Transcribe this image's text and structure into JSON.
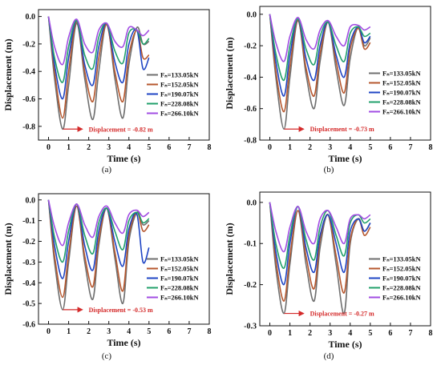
{
  "colors": {
    "series": [
      "#6f6f6f",
      "#b6572e",
      "#1f45c4",
      "#22a06b",
      "#a24de3"
    ],
    "annotation": "#d42a2a"
  },
  "chart_data": [
    {
      "panel_label": "(a)",
      "type": "line",
      "xlabel": "Time (s)",
      "ylabel": "Displacement (m)",
      "xlim": [
        -0.5,
        8
      ],
      "ylim": [
        -0.9,
        0.05
      ],
      "xticks": [
        0,
        1,
        2,
        3,
        4,
        5,
        6,
        7,
        8
      ],
      "yticks": [
        0.0,
        -0.2,
        -0.4,
        -0.6,
        -0.8
      ],
      "ytick_labels": [
        "0.0",
        "-0.2",
        "-0.4",
        "-0.6",
        "-0.8"
      ],
      "legend_position": "right",
      "annotation": {
        "text": "Displacement = -0.82 m",
        "x": 0.72,
        "y": -0.82
      },
      "series": [
        {
          "name": "Fₙ=133.05kN",
          "x": [
            0,
            0.3,
            0.7,
            1.0,
            1.4,
            1.8,
            2.2,
            2.5,
            2.9,
            3.3,
            3.7,
            4.0,
            4.4,
            4.7,
            5.0
          ],
          "values": [
            0.0,
            -0.45,
            -0.82,
            -0.5,
            -0.05,
            -0.45,
            -0.75,
            -0.4,
            -0.05,
            -0.45,
            -0.74,
            -0.35,
            -0.08,
            -0.2,
            -0.18
          ]
        },
        {
          "name": "Fₙ=152.05kN",
          "x": [
            0,
            0.3,
            0.7,
            1.0,
            1.4,
            1.8,
            2.2,
            2.5,
            2.9,
            3.3,
            3.7,
            4.0,
            4.4,
            4.7,
            5.0
          ],
          "values": [
            0.0,
            -0.4,
            -0.74,
            -0.4,
            -0.04,
            -0.4,
            -0.62,
            -0.3,
            -0.06,
            -0.4,
            -0.62,
            -0.28,
            -0.1,
            -0.3,
            -0.28
          ]
        },
        {
          "name": "Fₙ=190.07kN",
          "x": [
            0,
            0.3,
            0.7,
            1.0,
            1.4,
            1.8,
            2.2,
            2.5,
            2.9,
            3.3,
            3.7,
            4.0,
            4.4,
            4.7,
            5.0
          ],
          "values": [
            0.0,
            -0.35,
            -0.6,
            -0.3,
            -0.03,
            -0.35,
            -0.5,
            -0.22,
            -0.05,
            -0.33,
            -0.48,
            -0.2,
            -0.1,
            -0.38,
            -0.3
          ]
        },
        {
          "name": "Fₙ=228.08kN",
          "x": [
            0,
            0.3,
            0.7,
            1.0,
            1.4,
            1.8,
            2.2,
            2.5,
            2.9,
            3.3,
            3.7,
            4.0,
            4.4,
            4.7,
            5.0
          ],
          "values": [
            0.0,
            -0.3,
            -0.48,
            -0.22,
            -0.03,
            -0.28,
            -0.38,
            -0.15,
            -0.05,
            -0.25,
            -0.34,
            -0.12,
            -0.1,
            -0.2,
            -0.16
          ]
        },
        {
          "name": "Fₙ=266.10kN",
          "x": [
            0,
            0.3,
            0.7,
            1.0,
            1.4,
            1.8,
            2.2,
            2.5,
            2.9,
            3.3,
            3.7,
            4.0,
            4.4,
            4.7,
            5.0
          ],
          "values": [
            0.0,
            -0.22,
            -0.35,
            -0.15,
            -0.02,
            -0.2,
            -0.26,
            -0.1,
            -0.05,
            -0.18,
            -0.22,
            -0.08,
            -0.1,
            -0.14,
            -0.1
          ]
        }
      ]
    },
    {
      "panel_label": "(b)",
      "type": "line",
      "xlabel": "Time (s)",
      "ylabel": "Displacement (m)",
      "xlim": [
        -0.5,
        8
      ],
      "ylim": [
        -0.8,
        0.05
      ],
      "xticks": [
        0,
        1,
        2,
        3,
        4,
        5,
        6,
        7,
        8
      ],
      "yticks": [
        0.0,
        -0.2,
        -0.4,
        -0.6,
        -0.8
      ],
      "ytick_labels": [
        "0.0",
        "-0.2",
        "-0.4",
        "-0.6",
        "-0.8"
      ],
      "legend_position": "right",
      "annotation": {
        "text": "Displacement = -0.73 m",
        "x": 0.72,
        "y": -0.73
      },
      "series": [
        {
          "name": "Fₙ=133.05kN",
          "x": [
            0,
            0.3,
            0.7,
            1.0,
            1.4,
            1.8,
            2.2,
            2.5,
            2.9,
            3.3,
            3.7,
            4.0,
            4.4,
            4.7,
            5.0
          ],
          "values": [
            0.0,
            -0.4,
            -0.73,
            -0.4,
            -0.04,
            -0.38,
            -0.6,
            -0.3,
            -0.05,
            -0.35,
            -0.58,
            -0.28,
            -0.08,
            -0.2,
            -0.15
          ]
        },
        {
          "name": "Fₙ=152.05kN",
          "x": [
            0,
            0.3,
            0.7,
            1.0,
            1.4,
            1.8,
            2.2,
            2.5,
            2.9,
            3.3,
            3.7,
            4.0,
            4.4,
            4.7,
            5.0
          ],
          "values": [
            0.0,
            -0.36,
            -0.62,
            -0.33,
            -0.04,
            -0.34,
            -0.52,
            -0.25,
            -0.05,
            -0.3,
            -0.5,
            -0.22,
            -0.09,
            -0.22,
            -0.18
          ]
        },
        {
          "name": "Fₙ=190.07kN",
          "x": [
            0,
            0.3,
            0.7,
            1.0,
            1.4,
            1.8,
            2.2,
            2.5,
            2.9,
            3.3,
            3.7,
            4.0,
            4.4,
            4.7,
            5.0
          ],
          "values": [
            0.0,
            -0.3,
            -0.52,
            -0.26,
            -0.03,
            -0.28,
            -0.42,
            -0.2,
            -0.05,
            -0.26,
            -0.4,
            -0.18,
            -0.08,
            -0.18,
            -0.14
          ]
        },
        {
          "name": "Fₙ=228.08kN",
          "x": [
            0,
            0.3,
            0.7,
            1.0,
            1.4,
            1.8,
            2.2,
            2.5,
            2.9,
            3.3,
            3.7,
            4.0,
            4.4,
            4.7,
            5.0
          ],
          "values": [
            0.0,
            -0.25,
            -0.42,
            -0.2,
            -0.03,
            -0.22,
            -0.32,
            -0.14,
            -0.05,
            -0.2,
            -0.3,
            -0.12,
            -0.08,
            -0.14,
            -0.12
          ]
        },
        {
          "name": "Fₙ=266.10kN",
          "x": [
            0,
            0.3,
            0.7,
            1.0,
            1.4,
            1.8,
            2.2,
            2.5,
            2.9,
            3.3,
            3.7,
            4.0,
            4.4,
            4.7,
            5.0
          ],
          "values": [
            0.0,
            -0.18,
            -0.3,
            -0.14,
            -0.02,
            -0.16,
            -0.22,
            -0.1,
            -0.04,
            -0.14,
            -0.2,
            -0.08,
            -0.07,
            -0.1,
            -0.08
          ]
        }
      ]
    },
    {
      "panel_label": "(c)",
      "type": "line",
      "xlabel": "Time (s)",
      "ylabel": "Displacement (m)",
      "xlim": [
        -0.5,
        8
      ],
      "ylim": [
        -0.6,
        0.03
      ],
      "xticks": [
        0,
        1,
        2,
        3,
        4,
        5,
        6,
        7,
        8
      ],
      "yticks": [
        0.0,
        -0.1,
        -0.2,
        -0.3,
        -0.4,
        -0.5,
        -0.6
      ],
      "ytick_labels": [
        "0.0",
        "-0.1",
        "-0.2",
        "-0.3",
        "-0.4",
        "-0.5",
        "-0.6"
      ],
      "legend_position": "right",
      "annotation": {
        "text": "Displacement = -0.53 m",
        "x": 0.72,
        "y": -0.53
      },
      "series": [
        {
          "name": "Fₙ=133.05kN",
          "x": [
            0,
            0.3,
            0.7,
            1.0,
            1.4,
            1.8,
            2.2,
            2.5,
            2.9,
            3.3,
            3.7,
            4.0,
            4.4,
            4.7,
            5.0
          ],
          "values": [
            0.0,
            -0.3,
            -0.53,
            -0.3,
            -0.03,
            -0.3,
            -0.48,
            -0.22,
            -0.04,
            -0.28,
            -0.5,
            -0.2,
            -0.06,
            -0.12,
            -0.1
          ]
        },
        {
          "name": "Fₙ=152.05kN",
          "x": [
            0,
            0.3,
            0.7,
            1.0,
            1.4,
            1.8,
            2.2,
            2.5,
            2.9,
            3.3,
            3.7,
            4.0,
            4.4,
            4.7,
            5.0
          ],
          "values": [
            0.0,
            -0.27,
            -0.47,
            -0.26,
            -0.03,
            -0.27,
            -0.42,
            -0.19,
            -0.04,
            -0.25,
            -0.44,
            -0.17,
            -0.06,
            -0.15,
            -0.12
          ]
        },
        {
          "name": "Fₙ=190.07kN",
          "x": [
            0,
            0.3,
            0.7,
            1.0,
            1.4,
            1.8,
            2.2,
            2.5,
            2.9,
            3.3,
            3.7,
            4.0,
            4.4,
            4.7,
            5.0
          ],
          "values": [
            0.0,
            -0.22,
            -0.38,
            -0.2,
            -0.02,
            -0.22,
            -0.34,
            -0.15,
            -0.04,
            -0.2,
            -0.32,
            -0.14,
            -0.07,
            -0.3,
            -0.23
          ]
        },
        {
          "name": "Fₙ=228.08kN",
          "x": [
            0,
            0.3,
            0.7,
            1.0,
            1.4,
            1.8,
            2.2,
            2.5,
            2.9,
            3.3,
            3.7,
            4.0,
            4.4,
            4.7,
            5.0
          ],
          "values": [
            0.0,
            -0.18,
            -0.3,
            -0.15,
            -0.02,
            -0.17,
            -0.26,
            -0.11,
            -0.04,
            -0.15,
            -0.24,
            -0.1,
            -0.06,
            -0.11,
            -0.09
          ]
        },
        {
          "name": "Fₙ=266.10kN",
          "x": [
            0,
            0.3,
            0.7,
            1.0,
            1.4,
            1.8,
            2.2,
            2.5,
            2.9,
            3.3,
            3.7,
            4.0,
            4.4,
            4.7,
            5.0
          ],
          "values": [
            0.0,
            -0.13,
            -0.22,
            -0.11,
            -0.02,
            -0.12,
            -0.18,
            -0.08,
            -0.03,
            -0.11,
            -0.16,
            -0.07,
            -0.05,
            -0.08,
            -0.06
          ]
        }
      ]
    },
    {
      "panel_label": "(d)",
      "type": "line",
      "xlabel": "Time (s)",
      "ylabel": "Displacement (m)",
      "xlim": [
        -0.5,
        8
      ],
      "ylim": [
        -0.3,
        0.025
      ],
      "xticks": [
        0,
        1,
        2,
        3,
        4,
        5,
        6,
        7,
        8
      ],
      "yticks": [
        0.0,
        -0.1,
        -0.2,
        -0.3
      ],
      "ytick_labels": [
        "0.0",
        "-0.1",
        "-0.2",
        "-0.3"
      ],
      "legend_position": "right",
      "annotation": {
        "text": "Displacement = -0.27 m",
        "x": 0.72,
        "y": -0.27
      },
      "series": [
        {
          "name": "Fₙ=133.05kN",
          "x": [
            0,
            0.3,
            0.7,
            1.0,
            1.4,
            1.8,
            2.2,
            2.5,
            2.9,
            3.3,
            3.7,
            4.0,
            4.4,
            4.7,
            5.0
          ],
          "values": [
            0.0,
            -0.16,
            -0.27,
            -0.15,
            -0.02,
            -0.15,
            -0.24,
            -0.11,
            -0.03,
            -0.15,
            -0.27,
            -0.1,
            -0.04,
            -0.07,
            -0.05
          ]
        },
        {
          "name": "Fₙ=152.05kN",
          "x": [
            0,
            0.3,
            0.7,
            1.0,
            1.4,
            1.8,
            2.2,
            2.5,
            2.9,
            3.3,
            3.7,
            4.0,
            4.4,
            4.7,
            5.0
          ],
          "values": [
            0.0,
            -0.14,
            -0.24,
            -0.13,
            -0.02,
            -0.13,
            -0.21,
            -0.09,
            -0.03,
            -0.13,
            -0.22,
            -0.09,
            -0.04,
            -0.08,
            -0.06
          ]
        },
        {
          "name": "Fₙ=190.07kN",
          "x": [
            0,
            0.3,
            0.7,
            1.0,
            1.4,
            1.8,
            2.2,
            2.5,
            2.9,
            3.3,
            3.7,
            4.0,
            4.4,
            4.7,
            5.0
          ],
          "values": [
            0.0,
            -0.12,
            -0.2,
            -0.1,
            -0.01,
            -0.11,
            -0.17,
            -0.08,
            -0.03,
            -0.1,
            -0.17,
            -0.07,
            -0.04,
            -0.07,
            -0.05
          ]
        },
        {
          "name": "Fₙ=228.08kN",
          "x": [
            0,
            0.3,
            0.7,
            1.0,
            1.4,
            1.8,
            2.2,
            2.5,
            2.9,
            3.3,
            3.7,
            4.0,
            4.4,
            4.7,
            5.0
          ],
          "values": [
            0.0,
            -0.1,
            -0.16,
            -0.08,
            -0.01,
            -0.09,
            -0.14,
            -0.06,
            -0.02,
            -0.08,
            -0.13,
            -0.05,
            -0.03,
            -0.05,
            -0.04
          ]
        },
        {
          "name": "Fₙ=266.10kN",
          "x": [
            0,
            0.3,
            0.7,
            1.0,
            1.4,
            1.8,
            2.2,
            2.5,
            2.9,
            3.3,
            3.7,
            4.0,
            4.4,
            4.7,
            5.0
          ],
          "values": [
            0.0,
            -0.07,
            -0.12,
            -0.06,
            -0.01,
            -0.07,
            -0.1,
            -0.04,
            -0.02,
            -0.06,
            -0.1,
            -0.04,
            -0.03,
            -0.04,
            -0.03
          ]
        }
      ]
    }
  ]
}
